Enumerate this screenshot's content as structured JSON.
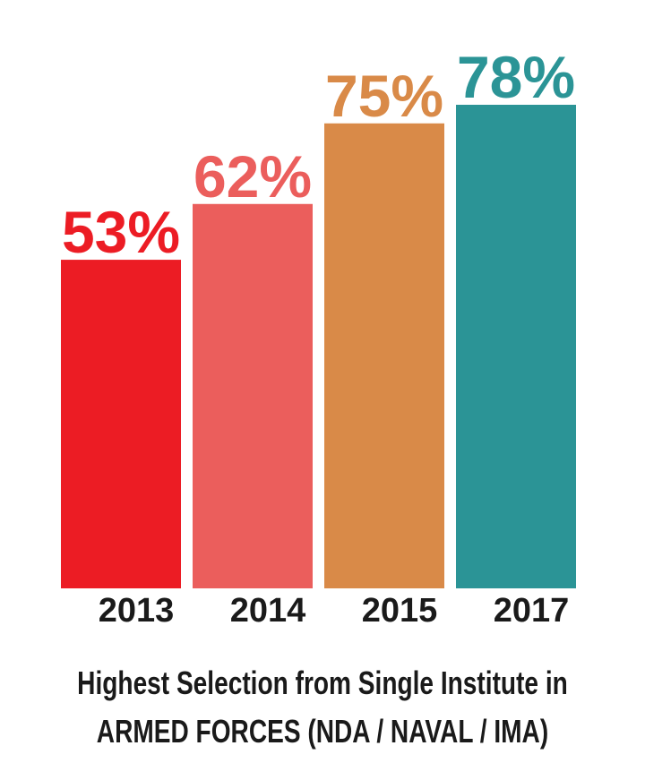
{
  "chart_data": {
    "type": "bar",
    "categories": [
      "2013",
      "2014",
      "2015",
      "2017"
    ],
    "values": [
      53,
      62,
      75,
      78
    ],
    "value_labels": [
      "53%",
      "62%",
      "75%",
      "78%"
    ],
    "colors": [
      "#ec1c24",
      "#eb5e5c",
      "#d98a48",
      "#2b9496"
    ],
    "ylim": [
      0,
      80
    ],
    "grid": false,
    "legend": "none"
  },
  "caption": {
    "line1": "Highest Selection from Single Institute in",
    "line2": "ARMED FORCES (NDA / NAVAL / IMA)"
  }
}
